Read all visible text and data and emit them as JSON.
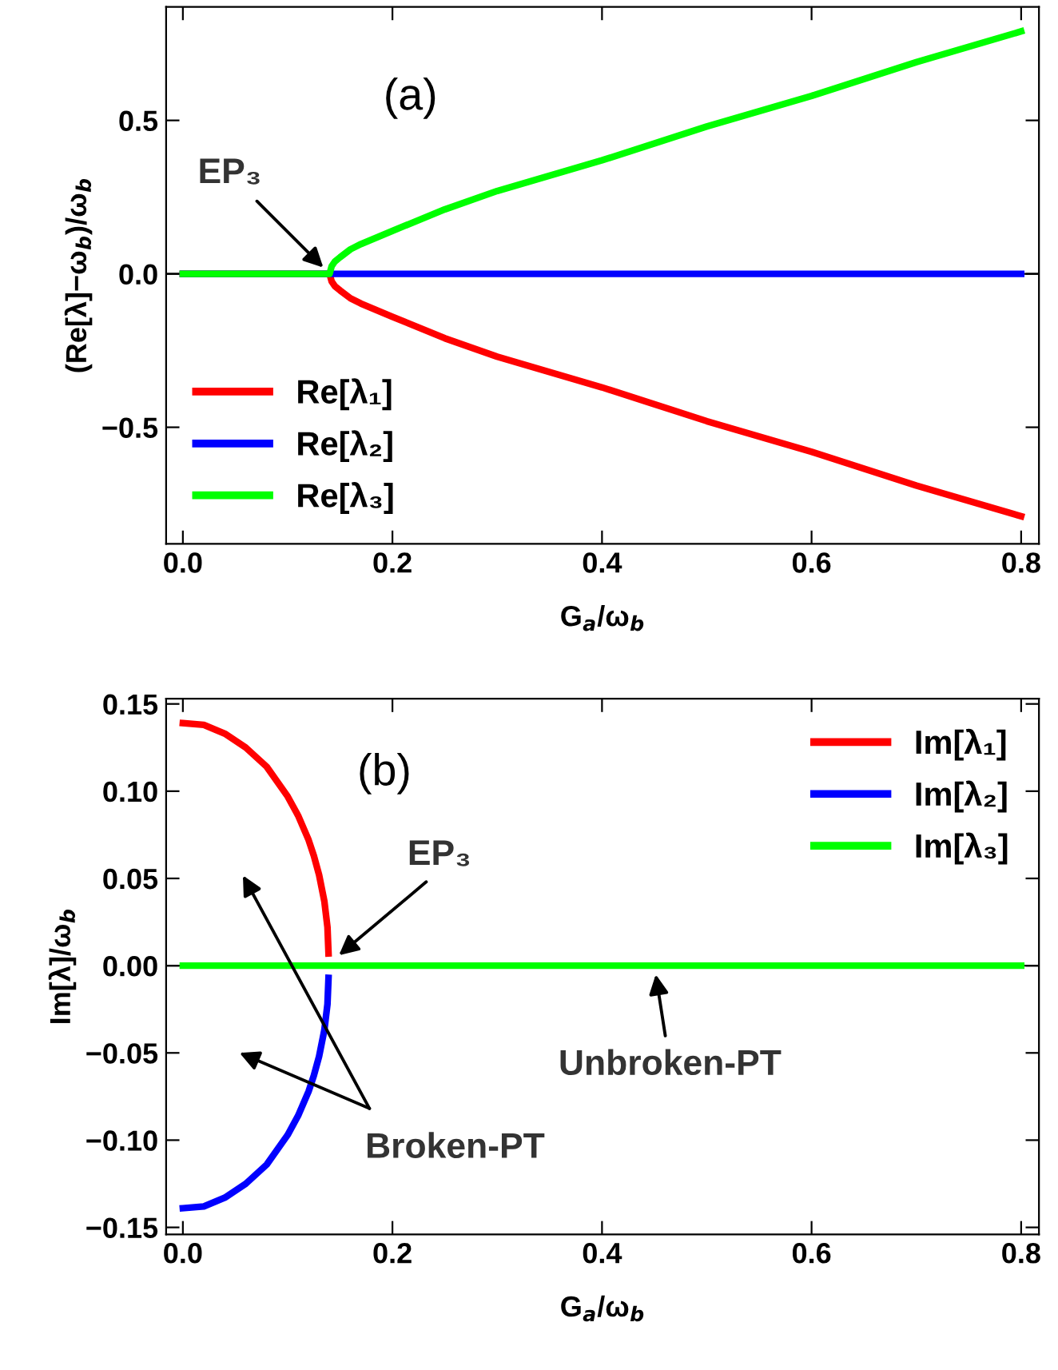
{
  "chart_data": [
    {
      "type": "line",
      "xlabel": "G$_{a}$/ω$_{b}$",
      "ylabel": "(Re[λ]−ω$_{b}$)/ω$_{b}$",
      "xlim": [
        -0.016,
        0.817
      ],
      "ylim": [
        -0.88,
        0.87
      ],
      "xticks": [
        {
          "value": 0,
          "label": "0.0"
        },
        0.2,
        0.4,
        0.6,
        0.8
      ],
      "ref_lines": [
        {
          "axis": "y",
          "value": 0,
          "color": "#000000"
        }
      ],
      "yticks": [
        {
          "value": -0.5,
          "label": "−0.5"
        },
        {
          "value": 0,
          "label": "0.0"
        },
        {
          "value": 0.5,
          "label": "0.5"
        }
      ],
      "legend": "bottom left",
      "grid": false,
      "annotations": [
        "(a)",
        {
          "text": "EP₃",
          "x": 0.14,
          "y": 0
        }
      ],
      "series": [
        {
          "name": "Re[λ₁]",
          "color": "#ff0000",
          "x": [
            0,
            0.14,
            0.142,
            0.145,
            0.15,
            0.16,
            0.17,
            0.2,
            0.25,
            0.3,
            0.4,
            0.5,
            0.6,
            0.7,
            0.8
          ],
          "values": [
            0,
            0,
            -0.025,
            -0.04,
            -0.054,
            -0.08,
            -0.097,
            -0.14,
            -0.21,
            -0.27,
            -0.37,
            -0.48,
            -0.58,
            -0.69,
            -0.79
          ]
        },
        {
          "name": "Re[λ₂]",
          "color": "#0000ff",
          "x": [
            0,
            0.8
          ],
          "values": [
            0,
            0
          ]
        },
        {
          "name": "Re[λ₃]",
          "color": "#00ff00",
          "x": [
            0,
            0.14,
            0.142,
            0.145,
            0.15,
            0.16,
            0.17,
            0.2,
            0.25,
            0.3,
            0.4,
            0.5,
            0.6,
            0.7,
            0.8
          ],
          "values": [
            0,
            0,
            0.025,
            0.04,
            0.054,
            0.08,
            0.097,
            0.14,
            0.21,
            0.27,
            0.37,
            0.48,
            0.58,
            0.69,
            0.79
          ]
        }
      ]
    },
    {
      "type": "line",
      "xlabel": "G$_{a}$/ω$_{b}$",
      "ylabel": "Im[λ]/ω$_{b}$",
      "xlim": [
        -0.016,
        0.817
      ],
      "ylim": [
        -0.154,
        0.153
      ],
      "xticks": [
        {
          "value": 0,
          "label": "0.0"
        },
        0.2,
        0.4,
        0.6,
        0.8
      ],
      "ref_lines": [
        {
          "axis": "y",
          "value": 0,
          "color": "#000000"
        }
      ],
      "yticks": [
        {
          "value": -0.15,
          "label": "−0.15"
        },
        {
          "value": -0.1,
          "label": "−0.10"
        },
        {
          "value": -0.05,
          "label": "−0.05"
        },
        {
          "value": 0,
          "label": "0.00"
        },
        {
          "value": 0.05,
          "label": "0.05"
        },
        {
          "value": 0.1,
          "label": "0.10"
        },
        {
          "value": 0.15,
          "label": "0.15"
        }
      ],
      "legend": "top right",
      "grid": false,
      "annotations": [
        "(b)",
        "EP₃",
        {
          "text": "Unbroken-PT",
          "x": 0.45,
          "y": 0
        },
        "Broken-PT"
      ],
      "series": [
        {
          "name": "Im[λ₁]",
          "color": "#ff0000",
          "x": [
            0,
            0.02,
            0.04,
            0.06,
            0.08,
            0.1,
            0.11,
            0.12,
            0.125,
            0.13,
            0.135,
            0.138,
            0.139
          ],
          "values": [
            0.139,
            0.138,
            0.133,
            0.125,
            0.114,
            0.097,
            0.086,
            0.072,
            0.063,
            0.052,
            0.037,
            0.022,
            0.007
          ]
        },
        {
          "name": "Im[λ₂]",
          "color": "#0000ff",
          "x": [
            0,
            0.02,
            0.04,
            0.06,
            0.08,
            0.1,
            0.11,
            0.12,
            0.125,
            0.13,
            0.135,
            0.138,
            0.139
          ],
          "values": [
            -0.139,
            -0.138,
            -0.133,
            -0.125,
            -0.114,
            -0.097,
            -0.086,
            -0.072,
            -0.063,
            -0.052,
            -0.037,
            -0.022,
            -0.007
          ]
        },
        {
          "name": "Im[λ₃]",
          "color": "#00ff00",
          "x": [
            0,
            0.8
          ],
          "values": [
            0,
            0
          ]
        }
      ]
    }
  ]
}
